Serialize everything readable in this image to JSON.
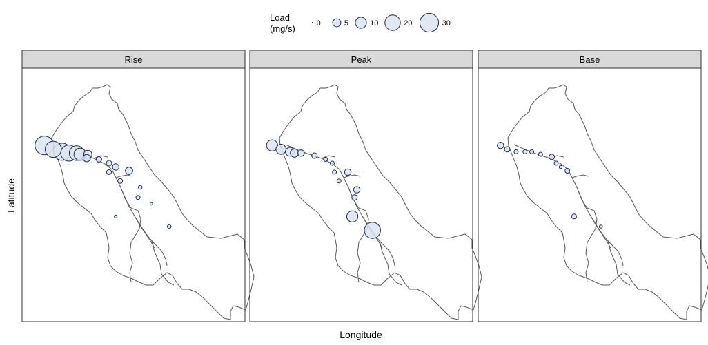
{
  "legend": {
    "title_line1": "Load",
    "title_line2": "(mg/s)",
    "items": [
      {
        "label": "0",
        "value": 0
      },
      {
        "label": "5",
        "value": 5
      },
      {
        "label": "10",
        "value": 10
      },
      {
        "label": "20",
        "value": 20
      },
      {
        "label": "30",
        "value": 30
      }
    ]
  },
  "axes": {
    "xlabel": "Longitude",
    "ylabel": "Latitude"
  },
  "colors": {
    "bubble_fill": "#dde4ef",
    "bubble_stroke": "#1b2a4a",
    "strip_fill": "#d9d9d9",
    "outline": "#555555"
  },
  "chart_data": {
    "type": "scatter",
    "size_variable": "Load (mg/s)",
    "facets": [
      {
        "label": "Rise",
        "points": [
          {
            "x": 0.1,
            "y": 0.305,
            "load": 30
          },
          {
            "x": 0.14,
            "y": 0.32,
            "load": 22
          },
          {
            "x": 0.18,
            "y": 0.33,
            "load": 25
          },
          {
            "x": 0.21,
            "y": 0.335,
            "load": 22
          },
          {
            "x": 0.245,
            "y": 0.335,
            "load": 18
          },
          {
            "x": 0.26,
            "y": 0.34,
            "load": 12
          },
          {
            "x": 0.295,
            "y": 0.34,
            "load": 5
          },
          {
            "x": 0.29,
            "y": 0.355,
            "load": 4
          },
          {
            "x": 0.345,
            "y": 0.36,
            "load": 2
          },
          {
            "x": 0.39,
            "y": 0.375,
            "load": 2
          },
          {
            "x": 0.42,
            "y": 0.39,
            "load": 3
          },
          {
            "x": 0.48,
            "y": 0.405,
            "load": 4
          },
          {
            "x": 0.39,
            "y": 0.41,
            "load": 1.5
          },
          {
            "x": 0.44,
            "y": 0.445,
            "load": 1.5
          },
          {
            "x": 0.53,
            "y": 0.47,
            "load": 0.8
          },
          {
            "x": 0.52,
            "y": 0.51,
            "load": 1
          },
          {
            "x": 0.58,
            "y": 0.535,
            "load": 0.3
          },
          {
            "x": 0.42,
            "y": 0.585,
            "load": 0.4
          },
          {
            "x": 0.66,
            "y": 0.625,
            "load": 0.8
          }
        ]
      },
      {
        "label": "Peak",
        "points": [
          {
            "x": 0.1,
            "y": 0.305,
            "load": 10
          },
          {
            "x": 0.14,
            "y": 0.32,
            "load": 8
          },
          {
            "x": 0.18,
            "y": 0.33,
            "load": 6
          },
          {
            "x": 0.2,
            "y": 0.335,
            "load": 5
          },
          {
            "x": 0.23,
            "y": 0.335,
            "load": 3
          },
          {
            "x": 0.29,
            "y": 0.345,
            "load": 2
          },
          {
            "x": 0.34,
            "y": 0.36,
            "load": 1
          },
          {
            "x": 0.37,
            "y": 0.375,
            "load": 1
          },
          {
            "x": 0.38,
            "y": 0.41,
            "load": 1
          },
          {
            "x": 0.44,
            "y": 0.41,
            "load": 3
          },
          {
            "x": 0.4,
            "y": 0.445,
            "load": 1
          },
          {
            "x": 0.48,
            "y": 0.48,
            "load": 3
          },
          {
            "x": 0.47,
            "y": 0.51,
            "load": 2
          },
          {
            "x": 0.46,
            "y": 0.585,
            "load": 10
          },
          {
            "x": 0.55,
            "y": 0.64,
            "load": 22
          }
        ]
      },
      {
        "label": "Base",
        "points": [
          {
            "x": 0.1,
            "y": 0.305,
            "load": 3
          },
          {
            "x": 0.13,
            "y": 0.32,
            "load": 2
          },
          {
            "x": 0.17,
            "y": 0.33,
            "load": 1
          },
          {
            "x": 0.21,
            "y": 0.33,
            "load": 1
          },
          {
            "x": 0.24,
            "y": 0.33,
            "load": 1
          },
          {
            "x": 0.28,
            "y": 0.34,
            "load": 1
          },
          {
            "x": 0.33,
            "y": 0.35,
            "load": 2
          },
          {
            "x": 0.35,
            "y": 0.375,
            "load": 1
          },
          {
            "x": 0.37,
            "y": 0.39,
            "load": 0.5
          },
          {
            "x": 0.4,
            "y": 0.405,
            "load": 1.5
          },
          {
            "x": 0.43,
            "y": 0.585,
            "load": 1.5
          },
          {
            "x": 0.55,
            "y": 0.625,
            "load": 0.5
          }
        ]
      }
    ]
  }
}
